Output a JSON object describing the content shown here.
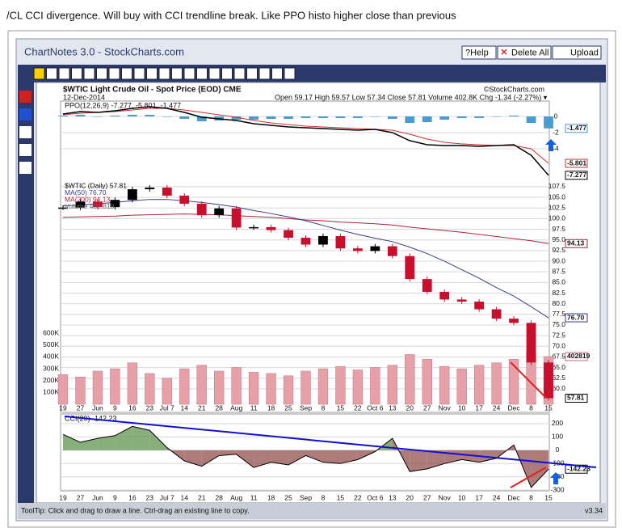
{
  "note": "/CL CCI divergence.  Will buy with CCI trendline break.  Like PPO histo higher close than previous",
  "window": {
    "title": "ChartNotes 3.0 - StockCharts.com",
    "buttons": [
      "?Help",
      "Delete All",
      "Upload"
    ]
  },
  "chart_data": {
    "type": "candlestick",
    "title": "$WTIC Light Crude Oil - Spot Price (EOD) CME",
    "date": "12-Dec-2014",
    "credit": "©StockCharts.com",
    "quote": "Open 59.17  High 59.57  Low 57.34  Close 57.81  Volume 402.8K  Chg -1.34 (-2.27%) ▾",
    "categories": [
      "19",
      "27",
      "Jun",
      "9",
      "16",
      "23",
      "Jul 7",
      "14",
      "21",
      "28",
      "Aug",
      "11",
      "18",
      "25",
      "Sep",
      "8",
      "15",
      "22",
      "Oct 6",
      "13",
      "20",
      "27",
      "Nov",
      "10",
      "17",
      "24",
      "Dec",
      "8",
      "15"
    ],
    "legend": [
      "$WTIC (Daily) 57.81",
      "MA(50) 76.70",
      "MA(200) 94.13",
      "Volume 402,819"
    ],
    "series": [
      {
        "name": "$WTIC",
        "color": "#c8102e",
        "values": [
          102.6,
          104.0,
          102.7,
          104.4,
          106.9,
          107.3,
          105.4,
          103.5,
          100.8,
          102.4,
          97.9,
          98.0,
          97.3,
          95.5,
          93.9,
          95.9,
          93.0,
          92.4,
          93.5,
          91.2,
          85.8,
          82.8,
          81.0,
          80.5,
          78.7,
          76.5,
          75.5,
          66.2,
          57.81
        ]
      },
      {
        "name": "MA(50)",
        "color": "#3a3a8c",
        "values": [
          103,
          103.2,
          103.5,
          103.8,
          104.2,
          104.5,
          104.5,
          104.2,
          103.8,
          103.3,
          102.7,
          101.9,
          101.2,
          100.4,
          99.5,
          98.4,
          97.3,
          96.3,
          95.4,
          94.6,
          93.3,
          91.8,
          90.0,
          88.0,
          86.0,
          83.8,
          81.8,
          79.3,
          76.7
        ]
      },
      {
        "name": "MA(200)",
        "color": "#b0223a",
        "values": [
          100.3,
          100.4,
          100.5,
          100.6,
          100.8,
          100.9,
          101.0,
          101.1,
          101.0,
          100.9,
          100.7,
          100.5,
          100.3,
          100.0,
          99.7,
          99.5,
          99.2,
          99.0,
          98.8,
          98.5,
          98.0,
          97.6,
          97.2,
          96.8,
          96.3,
          95.8,
          95.3,
          94.8,
          94.13
        ]
      }
    ],
    "ylim": [
      56,
      109
    ],
    "yticks": [
      107.5,
      {
        "value": 105,
        "label": "105.0"
      },
      102.5,
      {
        "value": 100,
        "label": "100.0"
      },
      97.5,
      {
        "value": 95,
        "label": "95.0"
      },
      92.5,
      {
        "value": 90,
        "label": "90.0"
      },
      87.5,
      {
        "value": 85,
        "label": "85.0"
      },
      82.5,
      {
        "value": 80,
        "label": "80.0"
      },
      77.5,
      {
        "value": 75,
        "label": "75.0"
      },
      72.5,
      {
        "value": 70,
        "label": "70.0"
      },
      67.5,
      {
        "value": 65,
        "label": "65.0"
      },
      62.5,
      {
        "value": 60,
        "label": "60.0"
      }
    ],
    "last_labels": [
      "94.13",
      "76.70",
      "402819",
      "57.81"
    ],
    "volume": {
      "name": "Volume",
      "color": "#e8a0a8",
      "values": [
        250000,
        230000,
        280000,
        300000,
        350000,
        260000,
        220000,
        300000,
        330000,
        280000,
        310000,
        270000,
        260000,
        240000,
        280000,
        300000,
        320000,
        290000,
        310000,
        330000,
        420000,
        380000,
        320000,
        300000,
        330000,
        350000,
        380000,
        440000,
        402819
      ],
      "ylim": [
        0,
        1890000
      ],
      "yticks": [
        {
          "value": 600000,
          "label": "600K"
        },
        {
          "value": 500000,
          "label": "500K"
        },
        {
          "value": 400000,
          "label": "400K"
        },
        {
          "value": 300000,
          "label": "300K"
        },
        {
          "value": 200000,
          "label": "200K"
        },
        {
          "value": 100000,
          "label": "100K"
        }
      ]
    },
    "ppo": {
      "label": "PPO(12,26,9) -7.277, -5.801, -1.477",
      "ylim": [
        -8.1,
        1.9
      ],
      "yticks": [
        0,
        -2,
        -4
      ],
      "last_labels": [
        "-1.477",
        "-5.801",
        "-7.277"
      ],
      "series": [
        {
          "name": "PPO",
          "color": "#000000",
          "values": [
            0.3,
            0.6,
            0.5,
            0.7,
            1.0,
            1.2,
            1.0,
            0.5,
            -0.1,
            -0.3,
            -0.5,
            -0.9,
            -1.1,
            -1.3,
            -1.4,
            -1.5,
            -1.6,
            -1.7,
            -1.6,
            -2.0,
            -3.0,
            -3.5,
            -3.6,
            -3.6,
            -3.7,
            -3.6,
            -3.5,
            -4.8,
            -7.277
          ]
        },
        {
          "name": "Signal",
          "color": "#d03030",
          "values": [
            0.2,
            0.4,
            0.5,
            0.6,
            0.8,
            1.0,
            1.0,
            0.8,
            0.5,
            0.2,
            -0.1,
            -0.5,
            -0.8,
            -1.0,
            -1.2,
            -1.3,
            -1.4,
            -1.5,
            -1.6,
            -1.7,
            -2.2,
            -2.8,
            -3.2,
            -3.4,
            -3.5,
            -3.6,
            -3.6,
            -4.0,
            -5.801
          ]
        },
        {
          "name": "Histogram",
          "color": "#4a9bd0",
          "values": [
            0.1,
            0.2,
            0,
            0.1,
            0.2,
            0.2,
            0,
            -0.3,
            -0.6,
            -0.5,
            -0.4,
            -0.4,
            -0.3,
            -0.3,
            -0.2,
            -0.2,
            -0.2,
            -0.2,
            0,
            -0.3,
            -0.8,
            -0.7,
            -0.4,
            -0.2,
            -0.2,
            0,
            0.1,
            -0.8,
            -1.477
          ]
        }
      ]
    },
    "cci": {
      "label": "CCI(20) -142.23",
      "color": "#000000",
      "values": [
        120,
        60,
        90,
        110,
        180,
        150,
        20,
        -80,
        -120,
        -40,
        -30,
        -130,
        -90,
        -110,
        -40,
        -90,
        -100,
        -70,
        -10,
        90,
        -160,
        -140,
        -100,
        -70,
        -90,
        -60,
        40,
        -280,
        -142.23
      ],
      "ylim": [
        -305,
        273
      ],
      "yticks": [
        200,
        100,
        0,
        -100,
        -200,
        -300
      ],
      "last_label": "-142.23"
    }
  },
  "footer": {
    "tooltip": "ToolTip: Click and drag to draw a line. Ctrl-drag an existing line to copy.",
    "version": "v3.34"
  }
}
